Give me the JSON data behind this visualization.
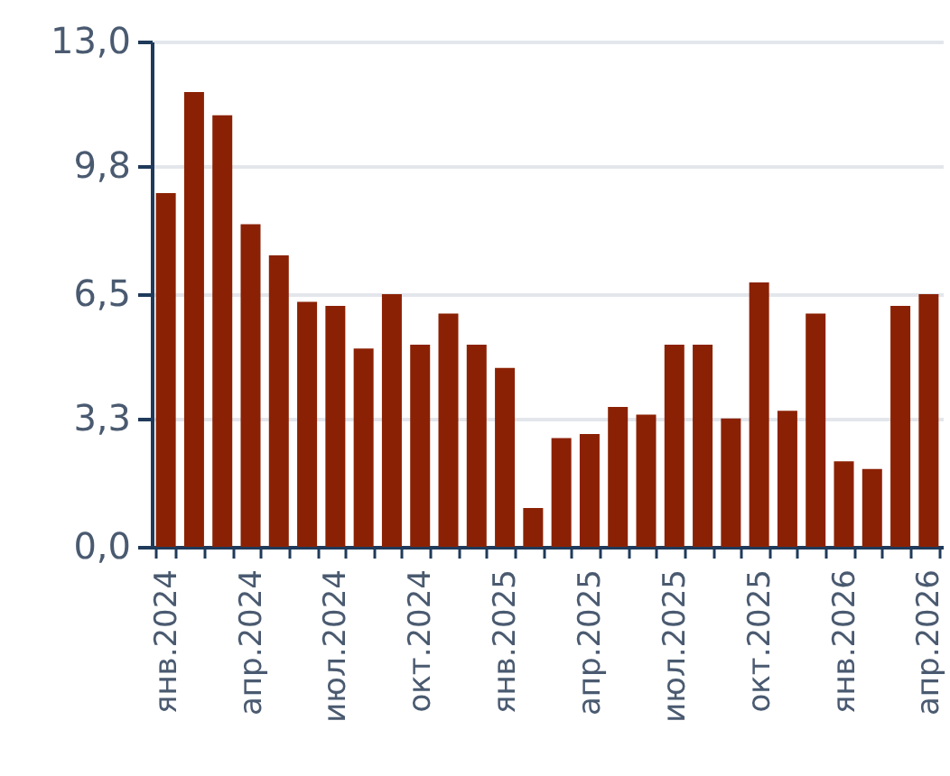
{
  "chart_data": {
    "type": "bar",
    "categories": [
      "янв.2024",
      null,
      null,
      "апр.2024",
      null,
      null,
      "июл.2024",
      null,
      null,
      "окт.2024",
      null,
      null,
      "янв.2025",
      null,
      null,
      "апр.2025",
      null,
      null,
      "июл.2025",
      null,
      null,
      "окт.2025",
      null,
      null,
      "янв.2026",
      null,
      null,
      "апр.2026"
    ],
    "values": [
      9.1,
      11.7,
      11.1,
      8.3,
      7.5,
      6.3,
      6.2,
      5.1,
      6.5,
      5.2,
      6.0,
      5.2,
      4.6,
      1.0,
      2.8,
      2.9,
      3.6,
      3.4,
      5.2,
      5.2,
      3.3,
      6.8,
      3.5,
      6.0,
      2.2,
      2.0,
      6.2,
      6.5
    ],
    "color": "#8b2104",
    "ylim": [
      0,
      13
    ],
    "yticks": [
      {
        "value": 0,
        "label": "0,0"
      },
      {
        "value": 3.3,
        "label": "3,3"
      },
      {
        "value": 6.5,
        "label": "6,5"
      },
      {
        "value": 9.8,
        "label": "9,8"
      },
      {
        "value": 13,
        "label": "13,0"
      }
    ],
    "grid": "y"
  }
}
